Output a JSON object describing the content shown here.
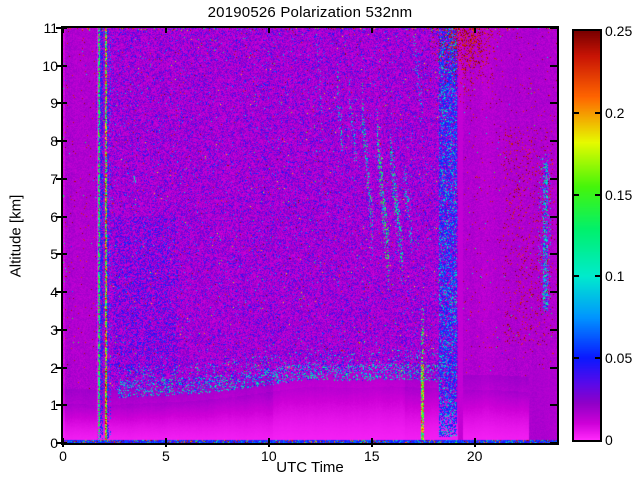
{
  "figure": {
    "background": "#ffffff"
  },
  "chart_data": {
    "type": "heatmap",
    "title": "20190526 Polarization 532nm",
    "xlabel": "UTC Time",
    "ylabel": "Altitude [km]",
    "xlim": [
      0,
      24
    ],
    "ylim": [
      0,
      11
    ],
    "xticks": [
      0,
      5,
      10,
      15,
      20
    ],
    "yticks": [
      0,
      1,
      2,
      3,
      4,
      5,
      6,
      7,
      8,
      9,
      10,
      11
    ],
    "grid": false,
    "legend": "colorbar-right",
    "colorbar": {
      "min": 0,
      "max": 0.25,
      "ticks": [
        0,
        0.05,
        0.1,
        0.15,
        0.2,
        0.25
      ],
      "labels": [
        "0",
        "0.05",
        "0.1",
        "0.15",
        "0.2",
        "0.25"
      ]
    },
    "colormap": [
      [
        0.0,
        255,
        40,
        252
      ],
      [
        0.01,
        205,
        0,
        215
      ],
      [
        0.022,
        145,
        0,
        200
      ],
      [
        0.035,
        85,
        10,
        235
      ],
      [
        0.05,
        10,
        25,
        255
      ],
      [
        0.075,
        0,
        150,
        255
      ],
      [
        0.1,
        0,
        235,
        205
      ],
      [
        0.128,
        0,
        240,
        110
      ],
      [
        0.155,
        70,
        245,
        10
      ],
      [
        0.182,
        230,
        250,
        0
      ],
      [
        0.21,
        255,
        100,
        0
      ],
      [
        0.235,
        200,
        20,
        5
      ],
      [
        0.25,
        122,
        0,
        0
      ]
    ],
    "render": {
      "seed": 20190526,
      "band": {
        "anchors": [
          [
            0,
            1.05
          ],
          [
            2,
            1.0
          ],
          [
            4,
            1.05
          ],
          [
            6,
            1.1
          ],
          [
            8,
            1.2
          ],
          [
            10,
            1.35
          ],
          [
            12,
            1.5
          ],
          [
            14,
            1.45
          ],
          [
            16,
            1.5
          ],
          [
            18,
            1.45
          ],
          [
            19.5,
            1.4
          ],
          [
            21,
            1.4
          ],
          [
            22.6,
            1.35
          ],
          [
            24,
            1.35
          ]
        ],
        "gap": 0.4,
        "v0": 0.0025,
        "v1": 0.015,
        "gamma": 1.6
      },
      "wedge": {
        "t0": 10.2,
        "t1": 16.6,
        "dalt": 0.65,
        "factor": 0.82
      },
      "smooth": {
        "left_tmax": 1.62,
        "right_tmin": 19.45,
        "vbase": 0.0115,
        "vjit": 0.0085,
        "red_p": 0.011,
        "dot_p": 0.002
      },
      "central": {
        "vbase": 0.0095,
        "scale": 0.011,
        "cap": 0.08,
        "bright_p": 0.003,
        "red_p": 0.0045
      },
      "dark_corner": {
        "t0": 22.65,
        "amax": 1.95,
        "v": 0.016
      },
      "artifacts": {
        "bottom_alt": 0.08,
        "top_alt": 10.93
      }
    },
    "features": [
      {
        "type": "vstreak",
        "t0": 1.63,
        "t1": 1.7,
        "a0": 0,
        "a1": 11,
        "mode": "smooth",
        "v": 0.006
      },
      {
        "type": "vstreak",
        "t0": 1.72,
        "t1": 1.79,
        "a0": 0.1,
        "a1": 11,
        "density": 0.65,
        "vmin": 0.1,
        "vrange": 0.06
      },
      {
        "type": "vstreak",
        "t0": 1.8,
        "t1": 1.93,
        "a0": 0.1,
        "a1": 11,
        "density": 0.5,
        "vmin": 0.037,
        "vrange": 0.027
      },
      {
        "type": "vstreak",
        "t0": 2.02,
        "t1": 2.14,
        "a0": 0.05,
        "a1": 11,
        "density": 0.8,
        "vmin": 0.1,
        "vrange": 0.14
      },
      {
        "type": "vstreak",
        "t0": 2.02,
        "t1": 2.14,
        "a0": 0.05,
        "a1": 2.0,
        "density": 0.9,
        "vmin": 0.12,
        "vrange": 0.13
      },
      {
        "type": "vstreak",
        "t0": 2.16,
        "t1": 2.24,
        "a0": 0.1,
        "a1": 11,
        "density": 0.45,
        "vmin": 0.04,
        "vrange": 0.027
      },
      {
        "type": "vstreak",
        "t0": 2.26,
        "t1": 2.34,
        "a0": 0.1,
        "a1": 11,
        "density": 0.28,
        "vmin": 0.045,
        "vrange": 0.03
      },
      {
        "type": "rect_dots",
        "t0": 2.45,
        "t1": 5.6,
        "a0": 1.8,
        "a1": 6.0,
        "density": 0.2,
        "vmin": 0.03,
        "vrange": 0.03
      },
      {
        "type": "boundary",
        "t0": 2.6,
        "t1": 18.3,
        "density": 0.3,
        "vmin": 0.04,
        "vrange": 0.09
      },
      {
        "type": "diag",
        "t0": 3.38,
        "a0": 7.05,
        "t1": 3.55,
        "a1": 6.95,
        "hh": 0.12,
        "density": 0.85,
        "vmin": 0.07,
        "vrange": 0.05
      },
      {
        "type": "diag",
        "t0": 12.3,
        "a0": 10.6,
        "t1": 12.6,
        "a1": 8.8,
        "hh": 0.7,
        "density": 0.15,
        "vmin": 0.05,
        "vrange": 0.07
      },
      {
        "type": "diag",
        "t0": 13.3,
        "a0": 9.7,
        "t1": 13.6,
        "a1": 7.8,
        "hh": 0.8,
        "density": 0.3,
        "vmin": 0.055,
        "vrange": 0.08
      },
      {
        "type": "diag",
        "t0": 13.9,
        "a0": 9.2,
        "t1": 14.3,
        "a1": 7.4,
        "hh": 0.7,
        "density": 0.22,
        "vmin": 0.055,
        "vrange": 0.07
      },
      {
        "type": "diag",
        "t0": 14.55,
        "a0": 8.8,
        "t1": 15.05,
        "a1": 5.6,
        "hh": 0.9,
        "density": 0.38,
        "vmin": 0.06,
        "vrange": 0.09
      },
      {
        "type": "diag",
        "t0": 15.25,
        "a0": 8.2,
        "t1": 15.85,
        "a1": 4.7,
        "hh": 1.0,
        "density": 0.5,
        "vmin": 0.065,
        "vrange": 0.1
      },
      {
        "type": "diag",
        "t0": 15.9,
        "a0": 7.7,
        "t1": 16.5,
        "a1": 4.9,
        "hh": 0.9,
        "density": 0.45,
        "vmin": 0.06,
        "vrange": 0.09
      },
      {
        "type": "diag",
        "t0": 16.55,
        "a0": 7.3,
        "t1": 16.95,
        "a1": 5.4,
        "hh": 0.7,
        "density": 0.3,
        "vmin": 0.055,
        "vrange": 0.08
      },
      {
        "type": "diag",
        "t0": 17.0,
        "a0": 10.9,
        "t1": 17.5,
        "a1": 8.6,
        "hh": 0.8,
        "density": 0.16,
        "vmin": 0.05,
        "vrange": 0.07
      },
      {
        "type": "vstreak",
        "t0": 17.38,
        "t1": 17.52,
        "a0": 0,
        "a1": 2.1,
        "density": 0.88,
        "vmin": 0.1,
        "vrange": 0.13
      },
      {
        "type": "vstreak",
        "t0": 17.38,
        "t1": 17.52,
        "a0": 2.1,
        "a1": 3.6,
        "density": 0.3,
        "vmin": 0.08,
        "vrange": 0.1
      },
      {
        "type": "vstreak",
        "t0": 18.25,
        "t1": 19.15,
        "a0": 0.15,
        "a1": 11,
        "density": 0.55,
        "vmin": 0.03,
        "vrange": 0.04
      },
      {
        "type": "vstreak",
        "t0": 18.25,
        "t1": 19.15,
        "a0": 0.15,
        "a1": 11,
        "density": 0.12,
        "vmin": 0.075,
        "vrange": 0.05
      },
      {
        "type": "vstreak",
        "t0": 19.17,
        "t1": 19.45,
        "a0": 0,
        "a1": 11,
        "mode": "smooth",
        "v": 0.012
      },
      {
        "type": "gauss_dots",
        "tc": 19.55,
        "ac": 11.1,
        "st": 0.75,
        "sa": 0.8,
        "peak": 0.45,
        "vmin": 0.222,
        "vrange": 0.028
      },
      {
        "type": "rect_dots",
        "t0": 21.4,
        "t1": 23.8,
        "a0": 2.6,
        "a1": 8.4,
        "density": 0.05,
        "vmin": 0.222,
        "vrange": 0.028
      },
      {
        "type": "rect_dots",
        "t0": 23.1,
        "t1": 23.7,
        "a0": 3.4,
        "a1": 7.7,
        "density": 0.07,
        "vmin": 0.05,
        "vrange": 0.08
      },
      {
        "type": "vstreak",
        "t0": 23.33,
        "t1": 23.55,
        "a0": 3.5,
        "a1": 7.5,
        "density": 0.5,
        "vmin": 0.045,
        "vrange": 0.085
      }
    ]
  }
}
